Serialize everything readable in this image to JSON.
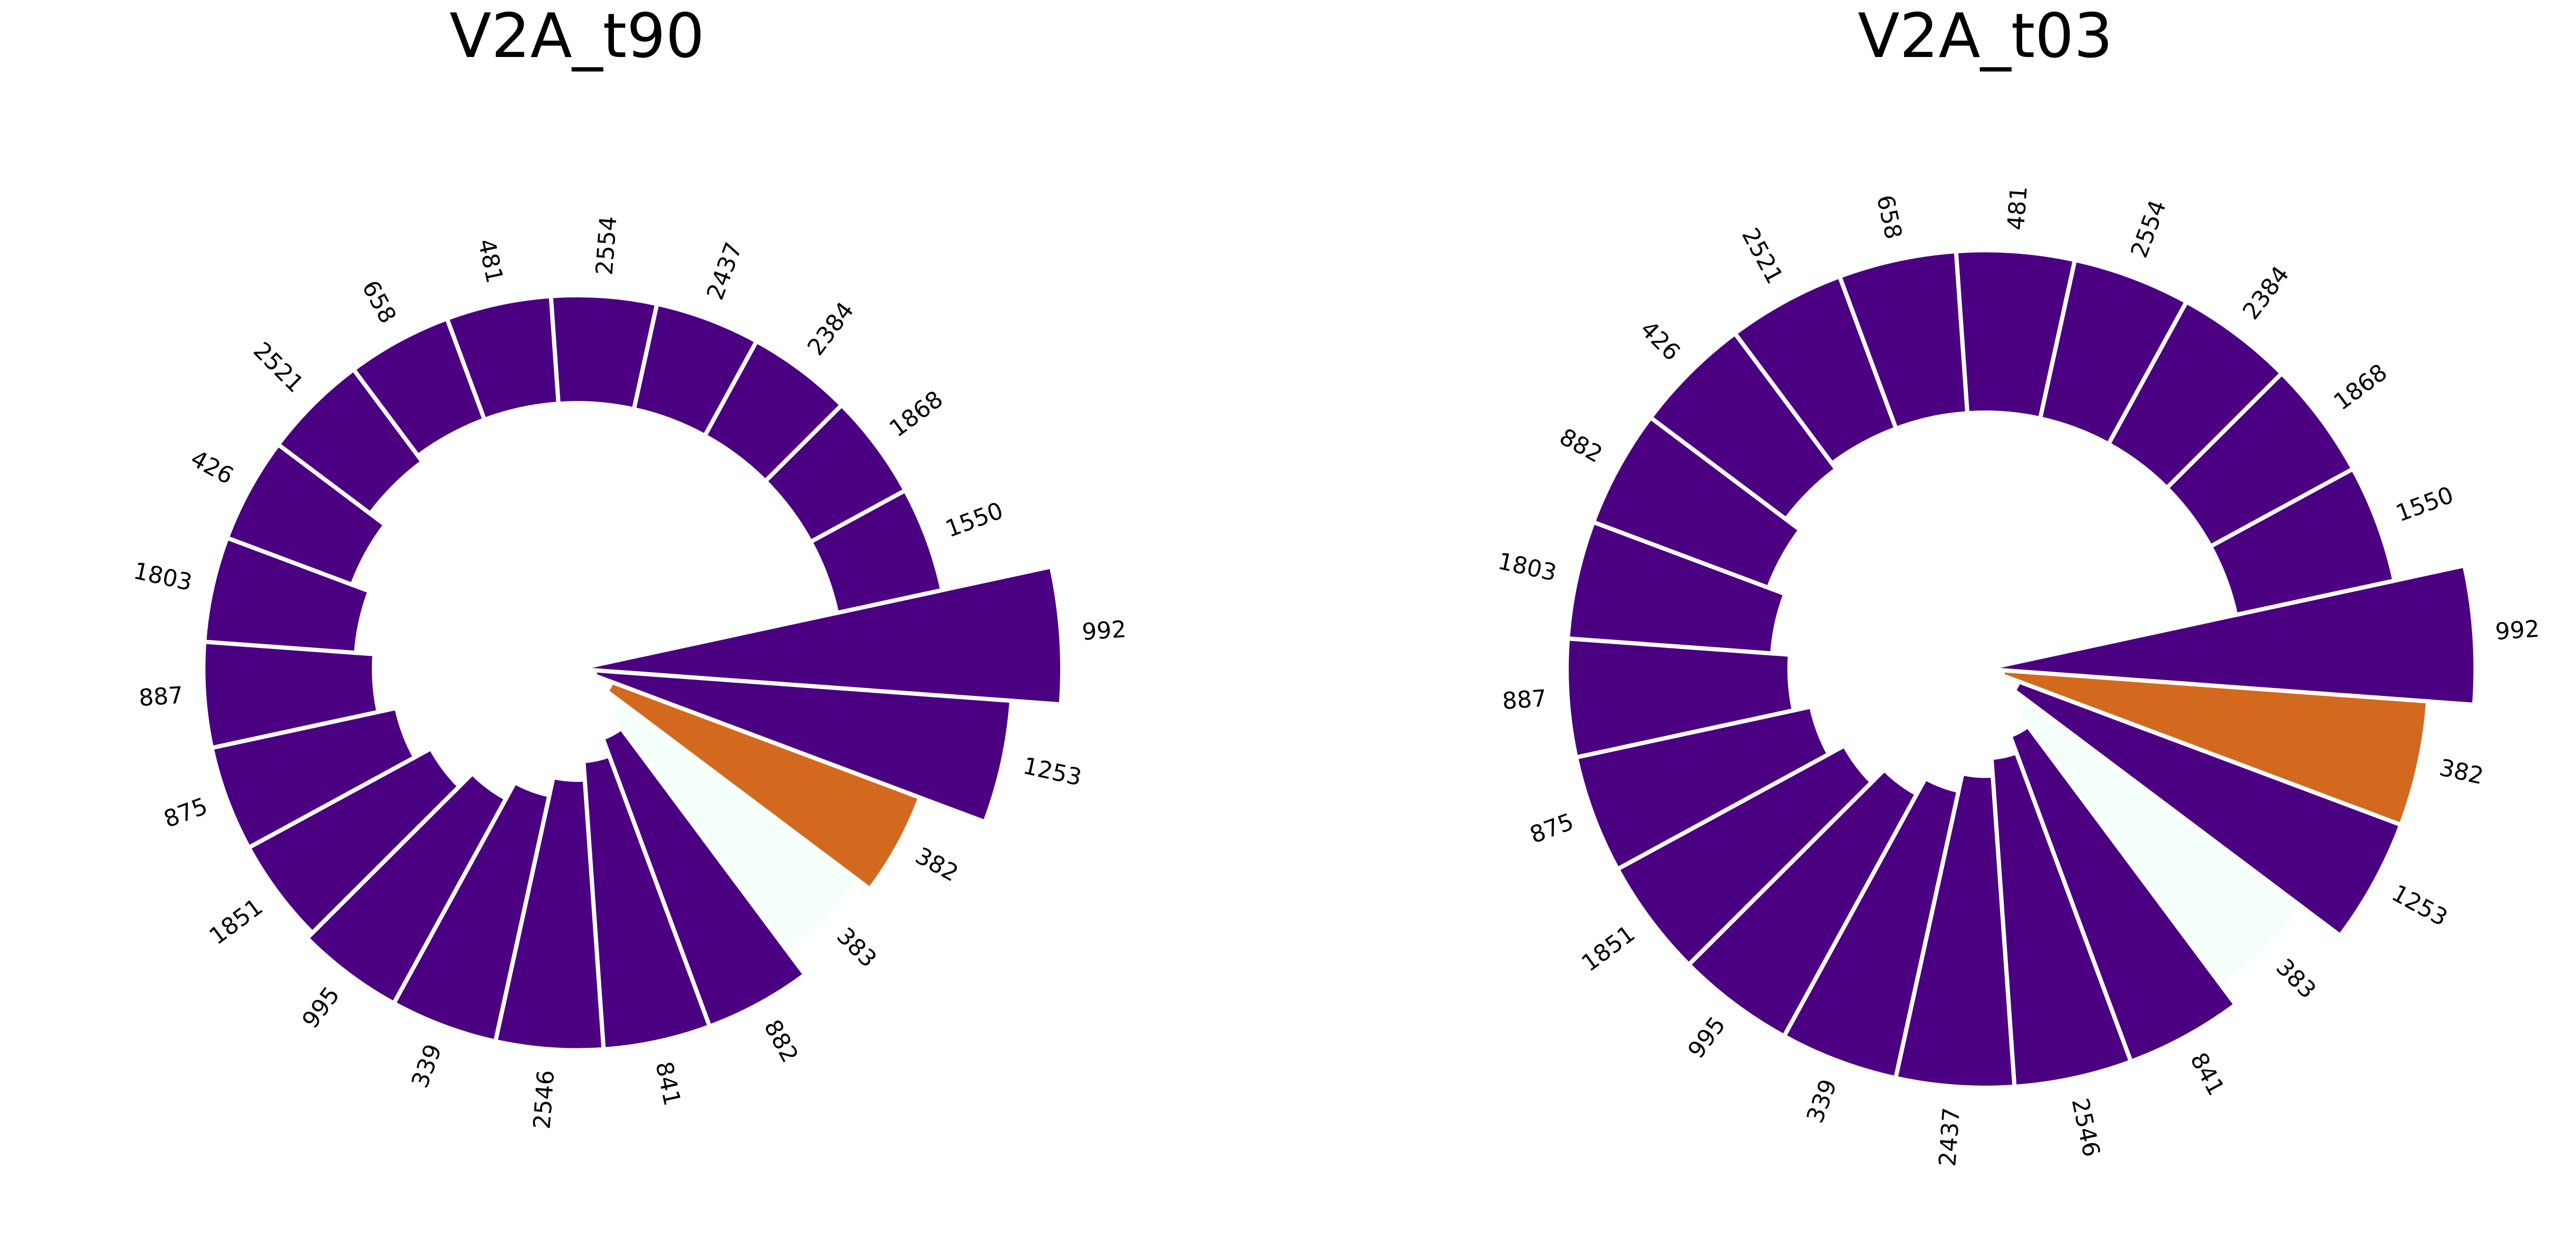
{
  "colors": {
    "default": "#4b0082",
    "background": "#ffffff",
    "separator": "#ffffff"
  },
  "chart_data": [
    {
      "type": "radial-bar",
      "title": "V2A_t90",
      "bars": [
        {
          "label": "992",
          "value": 1.0,
          "color": "#4b0082"
        },
        {
          "label": "1253",
          "value": 0.8,
          "color": "#4b0082"
        },
        {
          "label": "382",
          "value": 0.52,
          "color": "#d2691e"
        },
        {
          "label": "383",
          "value": 0.46,
          "color": "#f5fffa"
        },
        {
          "label": "882",
          "value": 0.58,
          "color": "#4b0082"
        },
        {
          "label": "841",
          "value": 0.58,
          "color": "#4b0082"
        },
        {
          "label": "2546",
          "value": 0.58,
          "color": "#4b0082"
        },
        {
          "label": "339",
          "value": 0.58,
          "color": "#4b0082"
        },
        {
          "label": "995",
          "value": 0.58,
          "color": "#4b0082"
        },
        {
          "label": "1851",
          "value": 0.55,
          "color": "#4b0082"
        },
        {
          "label": "875",
          "value": 0.55,
          "color": "#4b0082"
        },
        {
          "label": "887",
          "value": 0.55,
          "color": "#4b0082"
        },
        {
          "label": "1803",
          "value": 0.55,
          "color": "#4b0082"
        },
        {
          "label": "426",
          "value": 0.55,
          "color": "#4b0082"
        },
        {
          "label": "2521",
          "value": 0.55,
          "color": "#4b0082"
        },
        {
          "label": "658",
          "value": 0.55,
          "color": "#4b0082"
        },
        {
          "label": "481",
          "value": 0.55,
          "color": "#4b0082"
        },
        {
          "label": "2554",
          "value": 0.55,
          "color": "#4b0082"
        },
        {
          "label": "2437",
          "value": 0.55,
          "color": "#4b0082"
        },
        {
          "label": "2384",
          "value": 0.55,
          "color": "#4b0082"
        },
        {
          "label": "1868",
          "value": 0.55,
          "color": "#4b0082"
        },
        {
          "label": "1550",
          "value": 0.55,
          "color": "#4b0082"
        }
      ]
    },
    {
      "type": "radial-bar",
      "title": "V2A_t03",
      "bars": [
        {
          "label": "992",
          "value": 1.0,
          "color": "#4b0082"
        },
        {
          "label": "382",
          "value": 0.78,
          "color": "#d2691e"
        },
        {
          "label": "1253",
          "value": 0.78,
          "color": "#4b0082"
        },
        {
          "label": "383",
          "value": 0.55,
          "color": "#f5fffa"
        },
        {
          "label": "841",
          "value": 0.66,
          "color": "#4b0082"
        },
        {
          "label": "2546",
          "value": 0.66,
          "color": "#4b0082"
        },
        {
          "label": "2437",
          "value": 0.66,
          "color": "#4b0082"
        },
        {
          "label": "339",
          "value": 0.66,
          "color": "#4b0082"
        },
        {
          "label": "995",
          "value": 0.66,
          "color": "#4b0082"
        },
        {
          "label": "1851",
          "value": 0.66,
          "color": "#4b0082"
        },
        {
          "label": "875",
          "value": 0.66,
          "color": "#4b0082"
        },
        {
          "label": "887",
          "value": 0.66,
          "color": "#4b0082"
        },
        {
          "label": "1803",
          "value": 0.66,
          "color": "#4b0082"
        },
        {
          "label": "882",
          "value": 0.66,
          "color": "#4b0082"
        },
        {
          "label": "426",
          "value": 0.66,
          "color": "#4b0082"
        },
        {
          "label": "2521",
          "value": 0.66,
          "color": "#4b0082"
        },
        {
          "label": "658",
          "value": 0.66,
          "color": "#4b0082"
        },
        {
          "label": "481",
          "value": 0.66,
          "color": "#4b0082"
        },
        {
          "label": "2554",
          "value": 0.66,
          "color": "#4b0082"
        },
        {
          "label": "2384",
          "value": 0.66,
          "color": "#4b0082"
        },
        {
          "label": "1868",
          "value": 0.66,
          "color": "#4b0082"
        },
        {
          "label": "1550",
          "value": 0.66,
          "color": "#4b0082"
        }
      ]
    }
  ]
}
